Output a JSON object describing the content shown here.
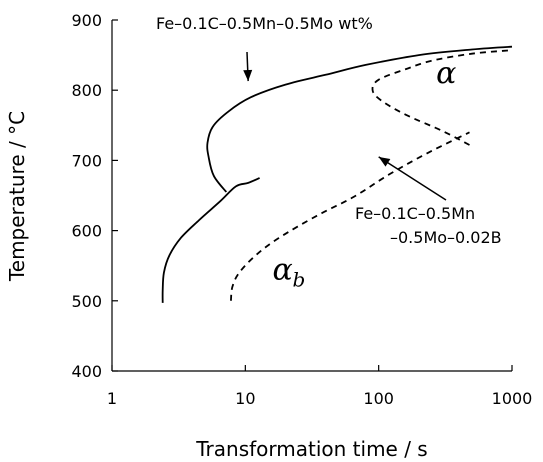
{
  "chart_data": {
    "type": "line",
    "title": "",
    "xlabel": "Transformation time / s",
    "ylabel": "Temperature / °C",
    "xscale": "log",
    "xlim": [
      1,
      1000
    ],
    "ylim": [
      400,
      900
    ],
    "x_ticks": [
      1,
      10,
      100,
      1000
    ],
    "x_tick_labels": [
      "1",
      "10",
      "100",
      "1000"
    ],
    "y_ticks": [
      400,
      500,
      600,
      700,
      800,
      900
    ],
    "y_tick_labels": [
      "400",
      "500",
      "600",
      "700",
      "800",
      "900"
    ],
    "grid": false,
    "series": [
      {
        "name": "Fe–0.1C–0.5Mn–0.5Mo wt%",
        "style": "solid",
        "color": "#000000",
        "points": [
          [
            2.4,
            497
          ],
          [
            2.4,
            515
          ],
          [
            2.45,
            540
          ],
          [
            2.7,
            565
          ],
          [
            3.3,
            590
          ],
          [
            4.5,
            615
          ],
          [
            6.5,
            642
          ],
          [
            8.5,
            663
          ],
          [
            10.5,
            668
          ],
          [
            12.8,
            675
          ]
        ],
        "points_upper": [
          [
            7.2,
            655
          ],
          [
            5.8,
            678
          ],
          [
            5.3,
            705
          ],
          [
            5.2,
            725
          ],
          [
            5.7,
            748
          ],
          [
            7.5,
            770
          ],
          [
            11,
            790
          ],
          [
            20,
            808
          ],
          [
            40,
            822
          ],
          [
            80,
            836
          ],
          [
            200,
            850
          ],
          [
            500,
            858
          ],
          [
            1000,
            862
          ]
        ]
      },
      {
        "name": "Fe–0.1C–0.5Mn –0.5Mo–0.02B",
        "style": "dashed",
        "color": "#000000",
        "points": [
          [
            7.8,
            500
          ],
          [
            8.0,
            520
          ],
          [
            9.0,
            540
          ],
          [
            12,
            565
          ],
          [
            18,
            590
          ],
          [
            35,
            622
          ],
          [
            65,
            648
          ],
          [
            120,
            680
          ],
          [
            230,
            710
          ],
          [
            480,
            740
          ]
        ],
        "points_upper": [
          [
            480,
            722
          ],
          [
            300,
            742
          ],
          [
            160,
            765
          ],
          [
            105,
            785
          ],
          [
            90,
            800
          ],
          [
            100,
            815
          ],
          [
            160,
            830
          ],
          [
            250,
            842
          ],
          [
            500,
            852
          ],
          [
            1000,
            857
          ]
        ]
      }
    ],
    "annotations": [
      {
        "text_lines": [
          "Fe–0.1C–0.5Mn–0.5Mo wt%"
        ],
        "arrow_to": [
          10.5,
          813
        ]
      },
      {
        "text_lines": [
          "Fe–0.1C–0.5Mn",
          "–0.5Mo–0.02B"
        ],
        "arrow_to": [
          100,
          705
        ]
      }
    ],
    "phase_labels": [
      {
        "symbol": "α",
        "subscript": "",
        "at": [
          270,
          810
        ]
      },
      {
        "symbol": "α",
        "subscript": "b",
        "at": [
          16,
          530
        ]
      }
    ]
  }
}
